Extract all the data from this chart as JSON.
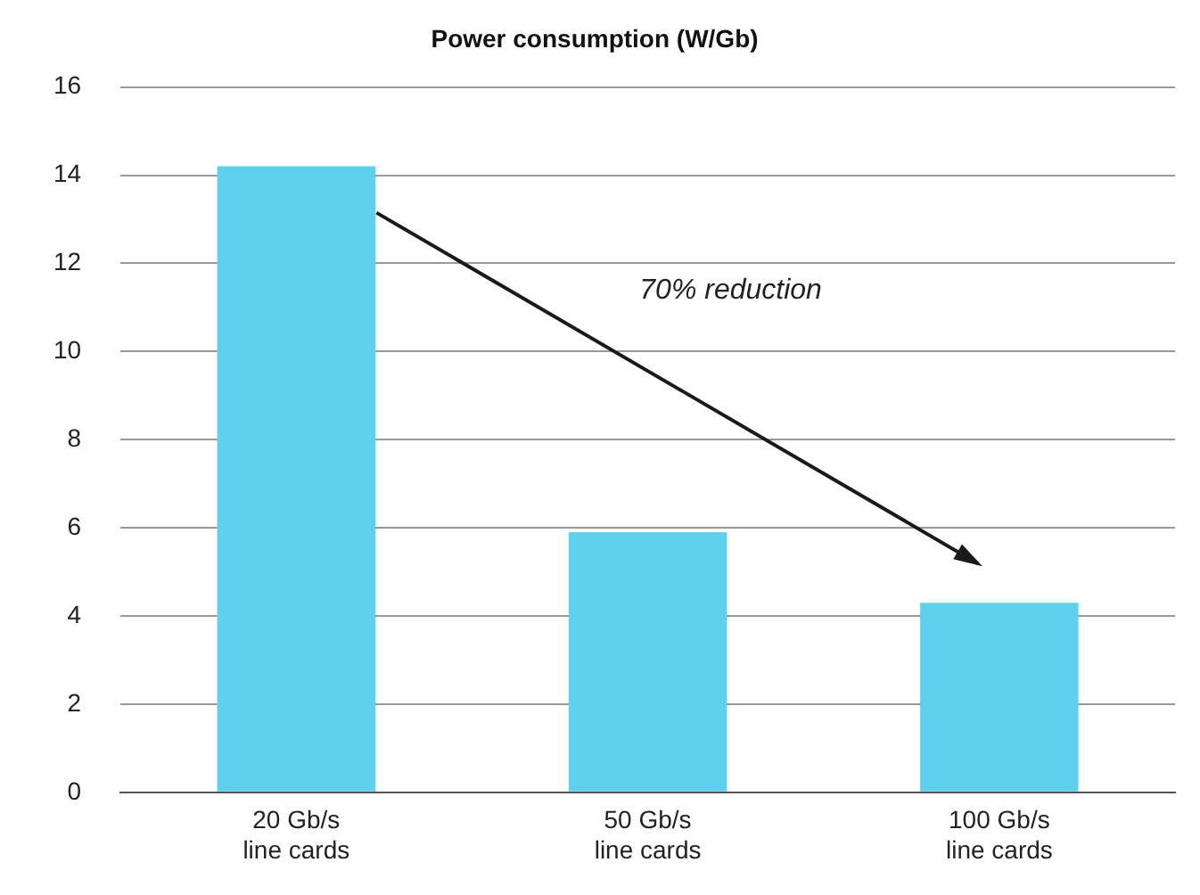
{
  "chart_data": {
    "type": "bar",
    "title": "Power consumption (W/Gb)",
    "categories": [
      "20 Gb/s line cards",
      "50 Gb/s line cards",
      "100 Gb/s line cards"
    ],
    "values": [
      14.2,
      5.9,
      4.3
    ],
    "color": "#5ecfee",
    "ylim": [
      0,
      16
    ],
    "yticks": [
      0,
      2,
      4,
      6,
      8,
      10,
      12,
      14,
      16
    ],
    "grid": "y",
    "legend": false,
    "annotations": [
      "70% reduction"
    ]
  }
}
